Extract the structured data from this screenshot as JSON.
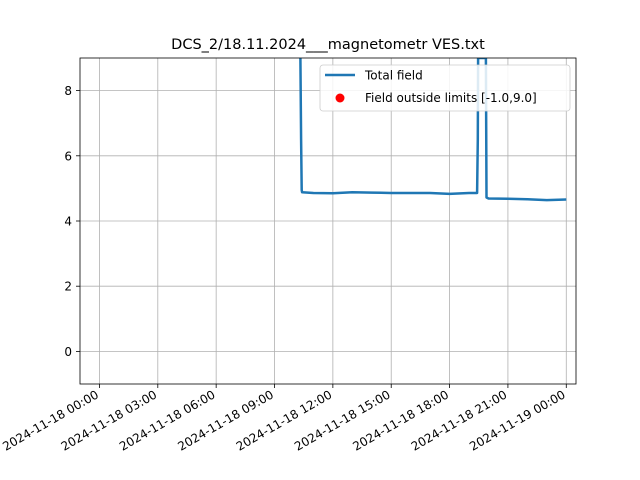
{
  "chart_data": {
    "type": "line",
    "title": "DCS_2/18.11.2024___magnetometr VES.txt",
    "xlabel": "",
    "ylabel": "",
    "x_is_datetime": true,
    "xlim": [
      "2024-11-17 23:00",
      "2024-11-19 00:30"
    ],
    "ylim": [
      -1.0,
      9.0
    ],
    "grid": true,
    "legend_position": "upper right",
    "x_ticks": [
      "2024-11-18 00:00",
      "2024-11-18 03:00",
      "2024-11-18 06:00",
      "2024-11-18 09:00",
      "2024-11-18 12:00",
      "2024-11-18 15:00",
      "2024-11-18 18:00",
      "2024-11-18 21:00",
      "2024-11-19 00:00"
    ],
    "y_ticks": [
      0,
      2,
      4,
      6,
      8
    ],
    "series": [
      {
        "name": "Total field",
        "kind": "line",
        "color": "#1f77b4",
        "x": [
          "2024-11-18 10:20",
          "2024-11-18 10:22",
          "2024-11-18 10:24",
          "2024-11-18 10:25",
          "2024-11-18 11:00",
          "2024-11-18 12:00",
          "2024-11-18 13:00",
          "2024-11-18 14:00",
          "2024-11-18 15:00",
          "2024-11-18 16:00",
          "2024-11-18 17:00",
          "2024-11-18 18:00",
          "2024-11-18 19:00",
          "2024-11-18 19:25",
          "2024-11-18 19:27",
          "2024-11-18 19:28",
          "2024-11-18 19:35",
          "2024-11-18 19:52",
          "2024-11-18 19:54",
          "2024-11-18 20:00",
          "2024-11-18 21:00",
          "2024-11-18 22:00",
          "2024-11-18 23:00",
          "2024-11-19 00:00"
        ],
        "y": [
          9.0,
          6.5,
          4.95,
          4.88,
          4.86,
          4.85,
          4.88,
          4.87,
          4.86,
          4.86,
          4.86,
          4.83,
          4.86,
          4.86,
          6.5,
          9.0,
          9.0,
          9.0,
          4.72,
          4.69,
          4.68,
          4.67,
          4.64,
          4.66
        ]
      },
      {
        "name": "Field outside limits [-1.0,9.0]",
        "kind": "scatter",
        "color": "#ff0000",
        "x": [],
        "y": []
      }
    ]
  }
}
